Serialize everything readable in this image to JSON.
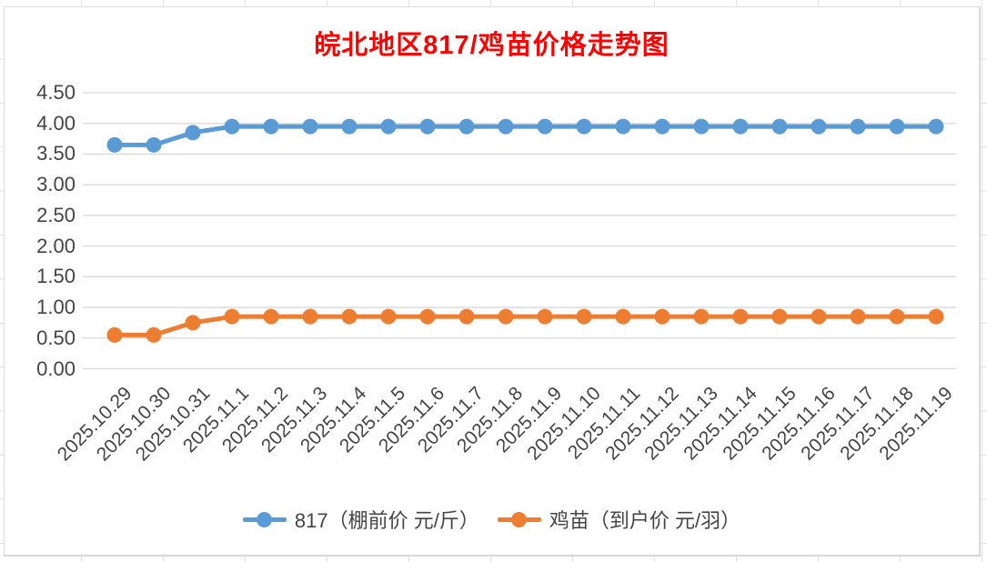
{
  "chart_data": {
    "type": "line",
    "title": "皖北地区817/鸡苗价格走势图",
    "title_color": "#FF0000",
    "categories": [
      "2025.10.29",
      "2025.10.30",
      "2025.10.31",
      "2025.11.1",
      "2025.11.2",
      "2025.11.3",
      "2025.11.4",
      "2025.11.5",
      "2025.11.6",
      "2025.11.7",
      "2025.11.8",
      "2025.11.9",
      "2025.11.10",
      "2025.11.11",
      "2025.11.12",
      "2025.11.13",
      "2025.11.14",
      "2025.11.15",
      "2025.11.16",
      "2025.11.17",
      "2025.11.18",
      "2025.11.19"
    ],
    "series": [
      {
        "name": "817（棚前价 元/斤）",
        "color": "#5B9BD5",
        "marker": "circle",
        "values": [
          3.65,
          3.65,
          3.85,
          3.95,
          3.95,
          3.95,
          3.95,
          3.95,
          3.95,
          3.95,
          3.95,
          3.95,
          3.95,
          3.95,
          3.95,
          3.95,
          3.95,
          3.95,
          3.95,
          3.95,
          3.95,
          3.95
        ]
      },
      {
        "name": "鸡苗（到户价 元/羽）",
        "color": "#ED7D31",
        "marker": "circle",
        "values": [
          0.55,
          0.55,
          0.75,
          0.85,
          0.85,
          0.85,
          0.85,
          0.85,
          0.85,
          0.85,
          0.85,
          0.85,
          0.85,
          0.85,
          0.85,
          0.85,
          0.85,
          0.85,
          0.85,
          0.85,
          0.85,
          0.85
        ]
      }
    ],
    "xlabel": "",
    "ylabel": "",
    "ylim": [
      0,
      4.5
    ],
    "ytick_step": 0.5,
    "ytick_labels": [
      "0.00",
      "0.50",
      "1.00",
      "1.50",
      "2.00",
      "2.50",
      "3.00",
      "3.50",
      "4.00",
      "4.50"
    ],
    "grid": true,
    "gridline_color": "#D9D9D9",
    "axis_text_color": "#444444",
    "legend_position": "bottom",
    "x_tick_rotation_deg": -45
  }
}
